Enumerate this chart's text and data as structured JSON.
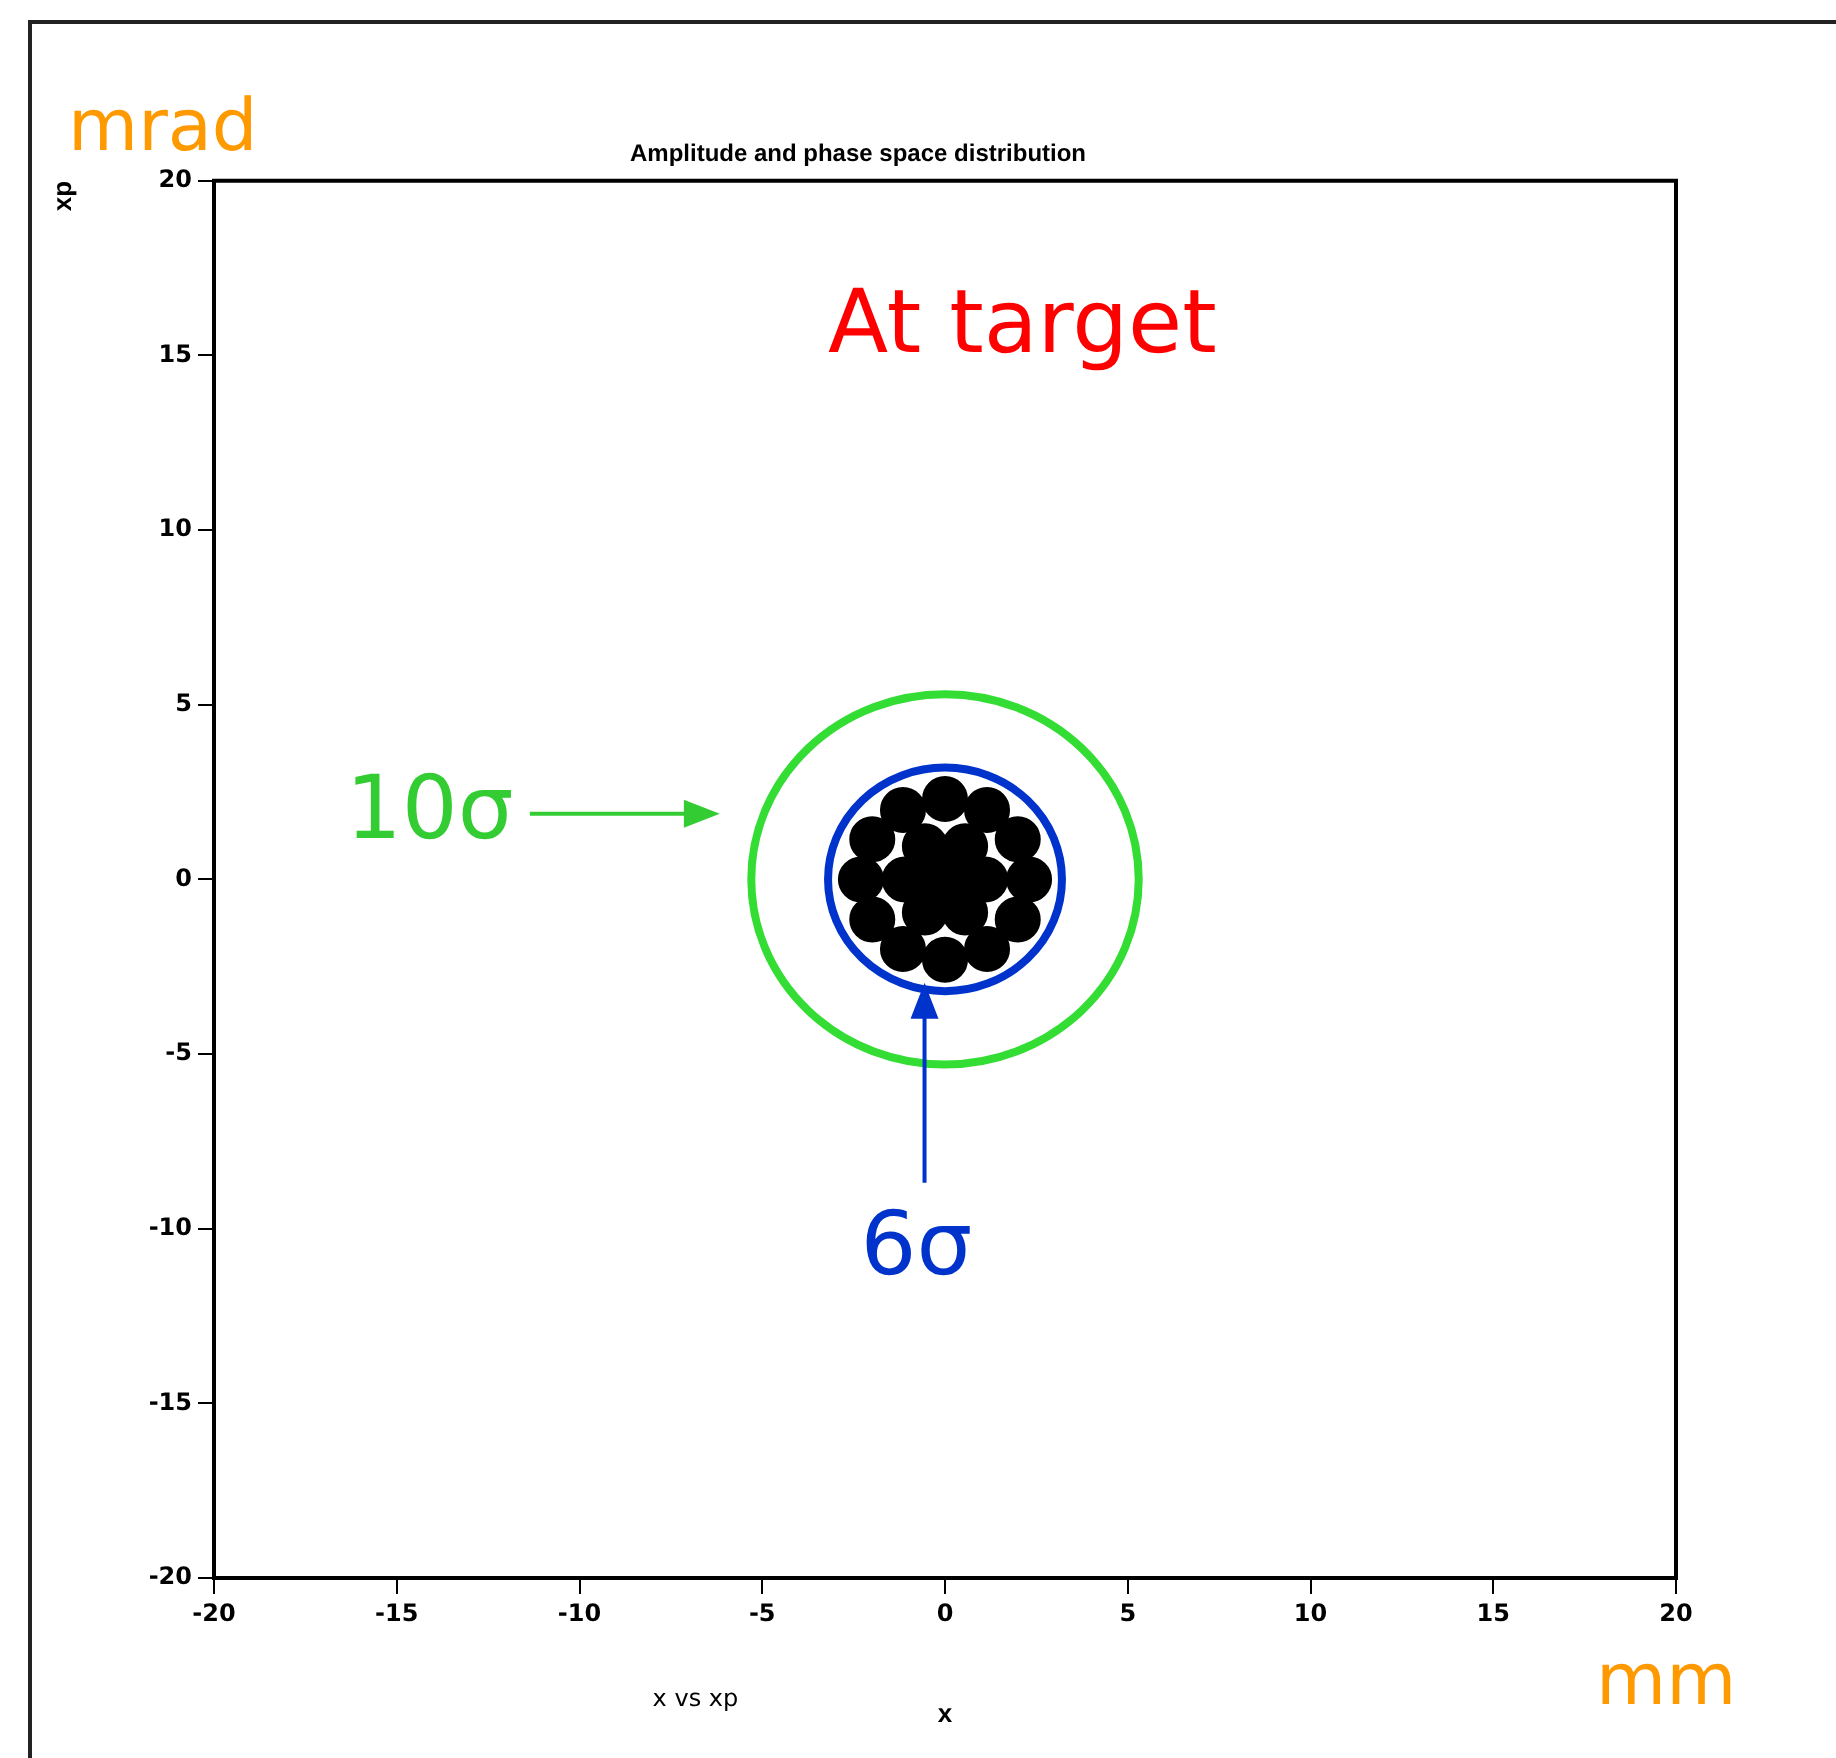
{
  "chart_data": {
    "type": "scatter",
    "title": "Amplitude and phase space distribution",
    "xlabel": "x",
    "ylabel": "xp",
    "annotations": [
      "mrad",
      "At target",
      "x vs xp",
      "mm",
      "10σ",
      "6σ"
    ],
    "xlim": [
      -20,
      20
    ],
    "ylim": [
      -20,
      20
    ],
    "xticks": [
      -20,
      -15,
      -10,
      -5,
      0,
      5,
      10,
      15,
      20
    ],
    "yticks": [
      -20,
      -15,
      -10,
      -5,
      0,
      5,
      10,
      15,
      20
    ],
    "grid": false,
    "legend": false,
    "series": [
      {
        "marker": "circle",
        "color": "#000000",
        "x": [
          0,
          1.1,
          0.55,
          -0.55,
          -1.1,
          -0.55,
          0.55,
          2.3,
          1.99,
          1.15,
          0,
          -1.15,
          -1.99,
          -2.3,
          -1.99,
          -1.15,
          0,
          1.15,
          1.99
        ],
        "values": [
          0,
          0,
          0.95,
          0.95,
          0,
          -0.95,
          -0.95,
          0,
          1.15,
          1.99,
          2.3,
          1.99,
          1.15,
          0,
          -1.15,
          -1.99,
          -2.3,
          -1.99,
          -1.15
        ]
      }
    ]
  }
}
